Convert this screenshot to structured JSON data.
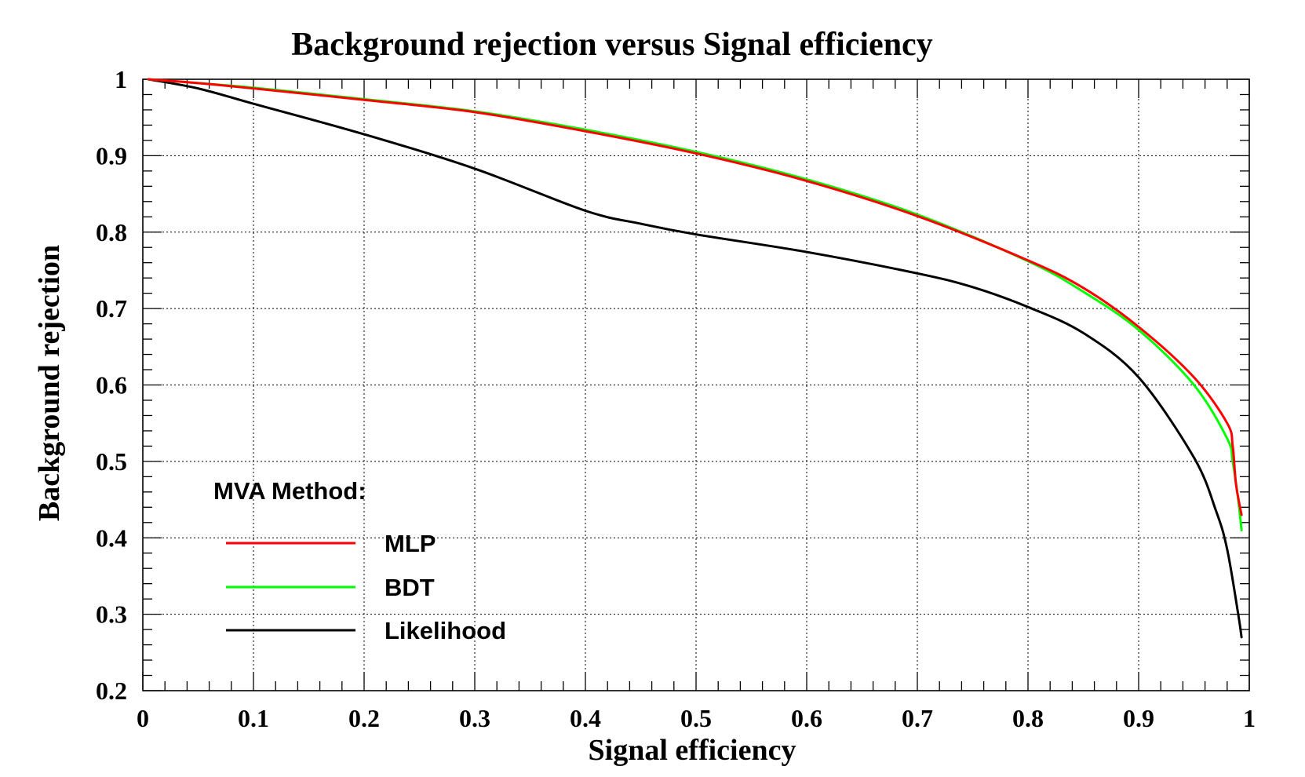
{
  "chart_data": {
    "type": "line",
    "title": "Background rejection versus Signal efficiency",
    "xlabel": "Signal efficiency",
    "ylabel": "Background rejection",
    "xlim": [
      0,
      1
    ],
    "ylim": [
      0.2,
      1
    ],
    "x_ticks": [
      "0",
      "0.1",
      "0.2",
      "0.3",
      "0.4",
      "0.5",
      "0.6",
      "0.7",
      "0.8",
      "0.9",
      "1"
    ],
    "y_ticks": [
      "0.2",
      "0.3",
      "0.4",
      "0.5",
      "0.6",
      "0.7",
      "0.8",
      "0.9",
      "1"
    ],
    "grid": true,
    "legend": {
      "title": "MVA Method:",
      "placement": "bottom-left",
      "entries": [
        "MLP",
        "BDT",
        "Likelihood"
      ]
    },
    "series": [
      {
        "name": "MLP",
        "color": "#ff0000",
        "points": [
          [
            0.005,
            1.0
          ],
          [
            0.05,
            0.995
          ],
          [
            0.1,
            0.988
          ],
          [
            0.2,
            0.973
          ],
          [
            0.3,
            0.957
          ],
          [
            0.4,
            0.932
          ],
          [
            0.5,
            0.903
          ],
          [
            0.6,
            0.867
          ],
          [
            0.7,
            0.821
          ],
          [
            0.8,
            0.763
          ],
          [
            0.85,
            0.727
          ],
          [
            0.9,
            0.676
          ],
          [
            0.95,
            0.61
          ],
          [
            0.98,
            0.55
          ],
          [
            0.985,
            0.52
          ],
          [
            0.988,
            0.47
          ],
          [
            0.993,
            0.43
          ]
        ]
      },
      {
        "name": "BDT",
        "color": "#00ff00",
        "points": [
          [
            0.005,
            1.0
          ],
          [
            0.05,
            0.995
          ],
          [
            0.1,
            0.989
          ],
          [
            0.2,
            0.974
          ],
          [
            0.3,
            0.958
          ],
          [
            0.4,
            0.934
          ],
          [
            0.5,
            0.905
          ],
          [
            0.6,
            0.869
          ],
          [
            0.7,
            0.823
          ],
          [
            0.8,
            0.762
          ],
          [
            0.85,
            0.722
          ],
          [
            0.9,
            0.672
          ],
          [
            0.95,
            0.6
          ],
          [
            0.98,
            0.53
          ],
          [
            0.985,
            0.5
          ],
          [
            0.99,
            0.45
          ],
          [
            0.993,
            0.41
          ]
        ]
      },
      {
        "name": "Likelihood",
        "color": "#000000",
        "points": [
          [
            0.005,
            1.0
          ],
          [
            0.05,
            0.988
          ],
          [
            0.1,
            0.968
          ],
          [
            0.2,
            0.928
          ],
          [
            0.3,
            0.883
          ],
          [
            0.4,
            0.828
          ],
          [
            0.45,
            0.811
          ],
          [
            0.5,
            0.797
          ],
          [
            0.6,
            0.774
          ],
          [
            0.7,
            0.746
          ],
          [
            0.75,
            0.728
          ],
          [
            0.8,
            0.702
          ],
          [
            0.85,
            0.668
          ],
          [
            0.9,
            0.61
          ],
          [
            0.95,
            0.505
          ],
          [
            0.97,
            0.435
          ],
          [
            0.98,
            0.385
          ],
          [
            0.99,
            0.3
          ],
          [
            0.993,
            0.27
          ]
        ]
      }
    ]
  }
}
